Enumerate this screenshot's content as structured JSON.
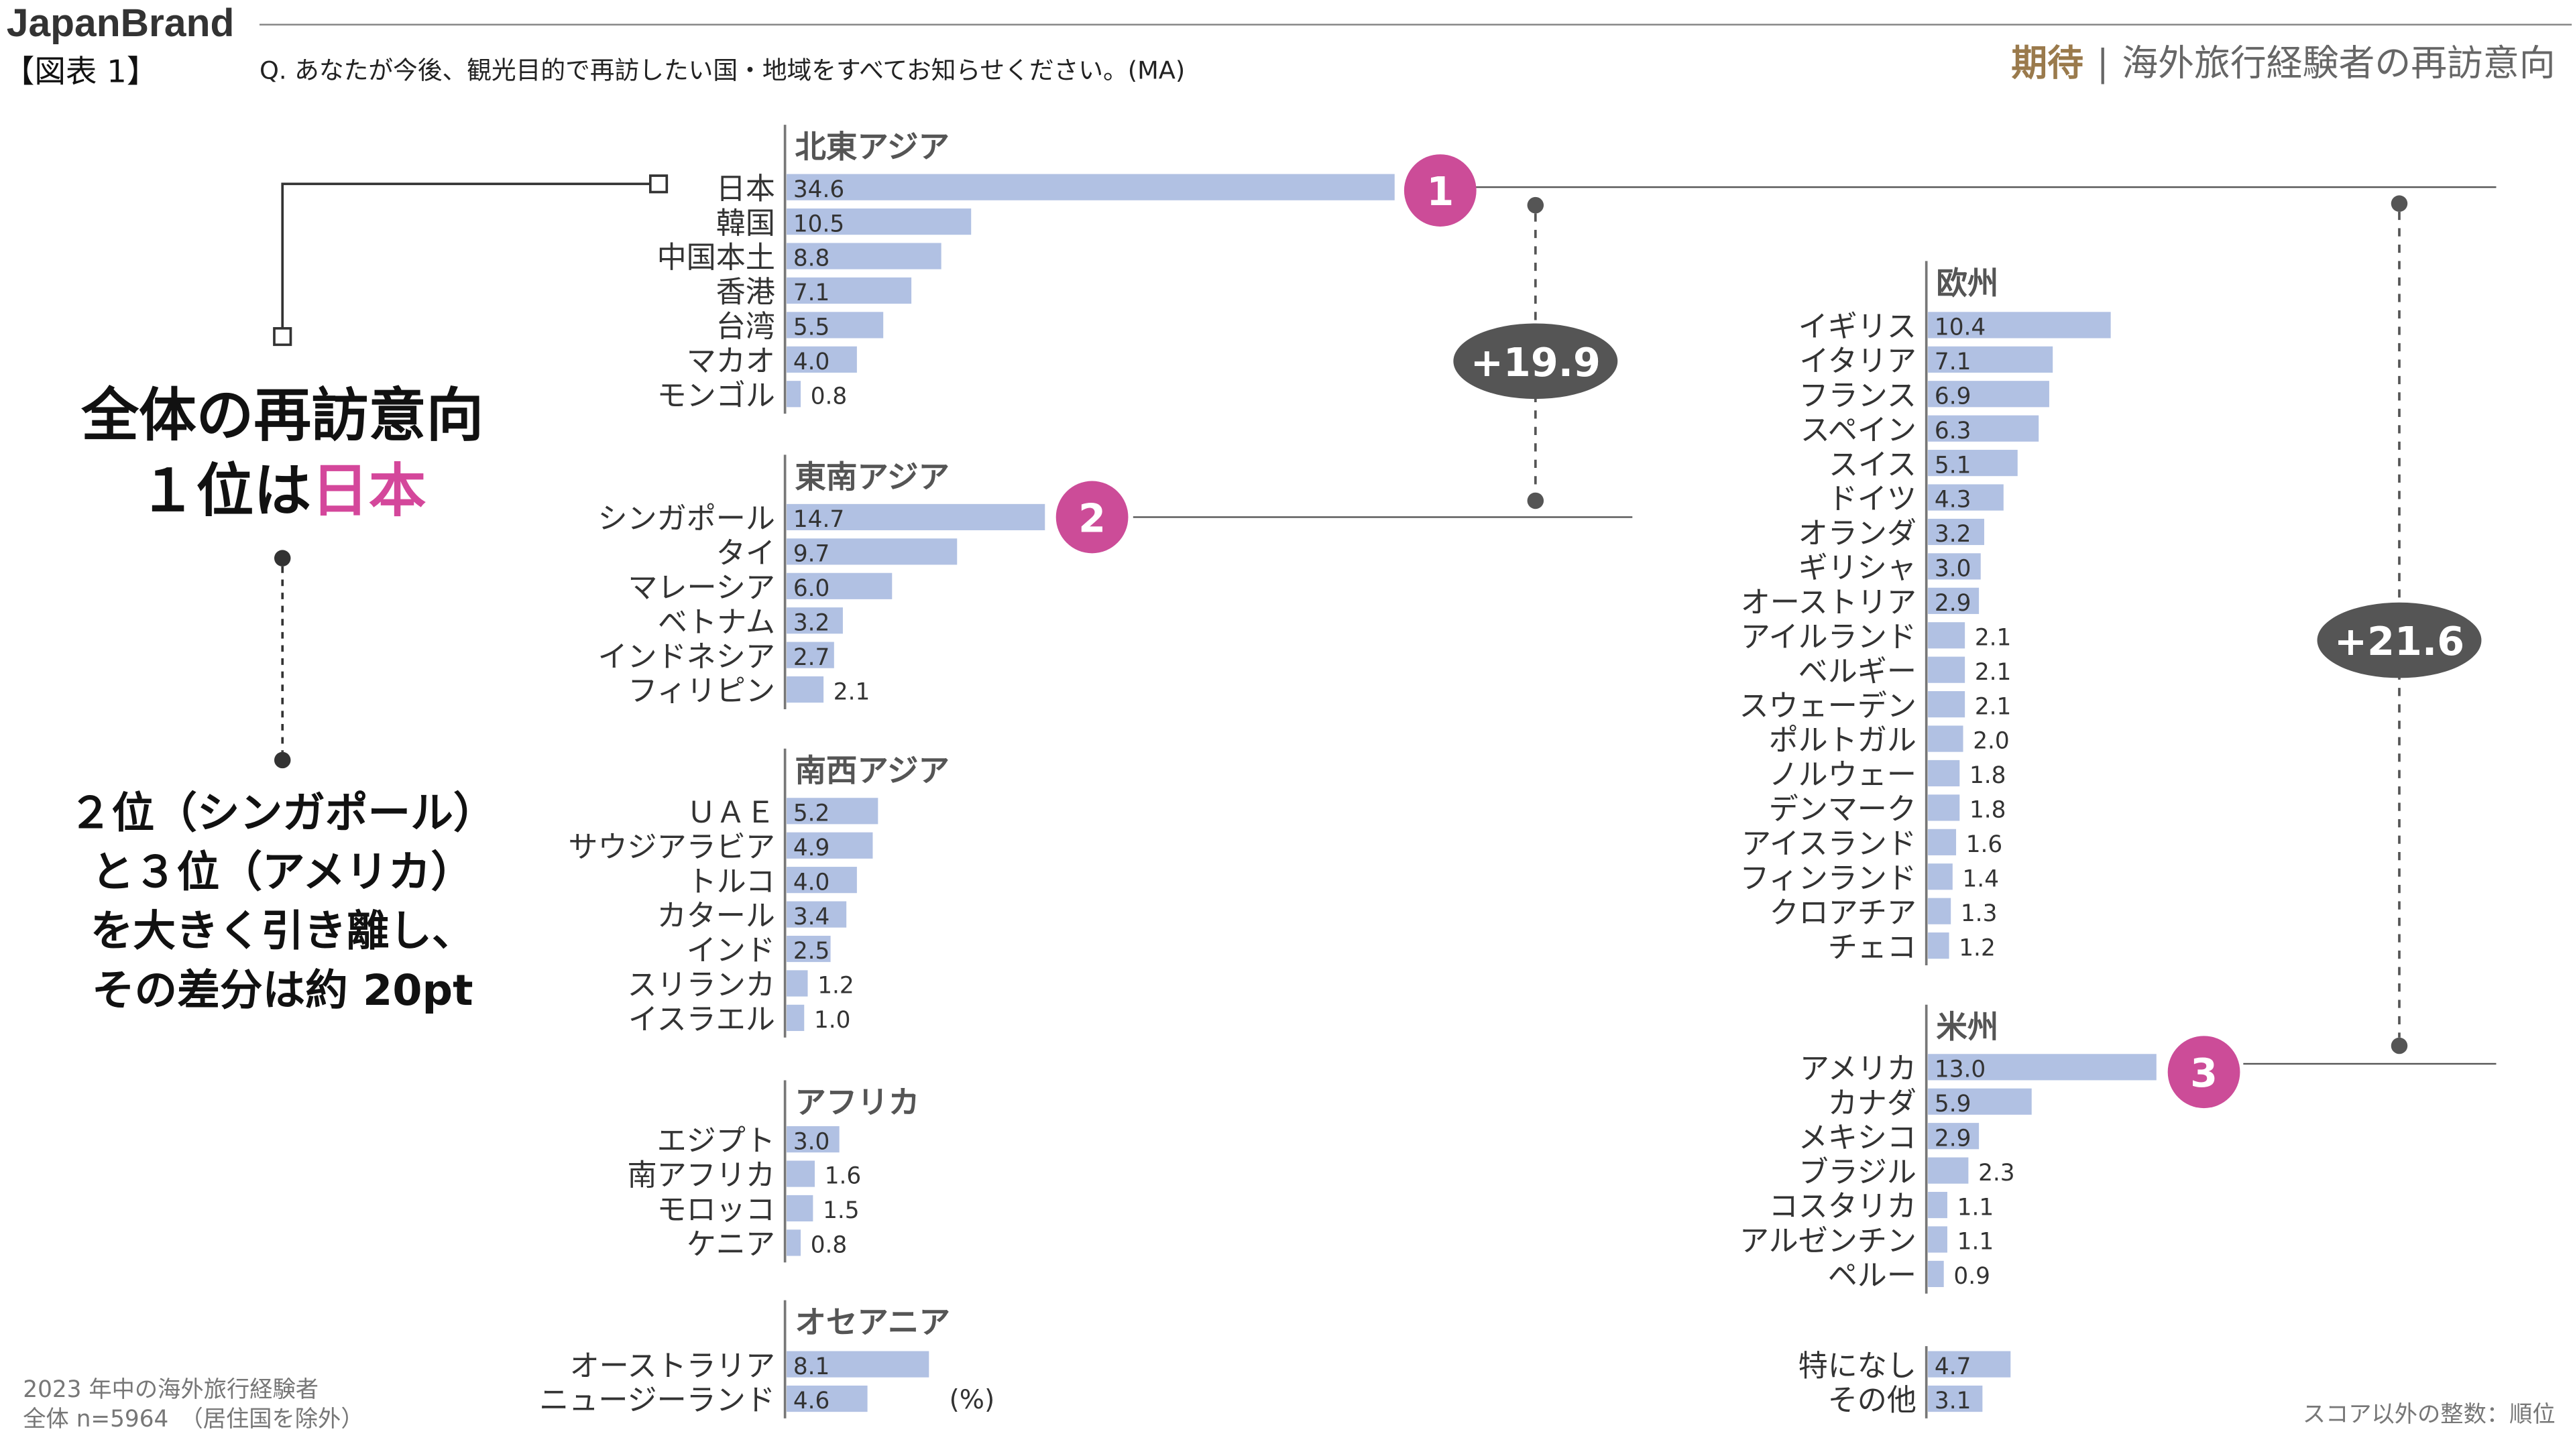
{
  "header": {
    "brand": "JapanBrand",
    "figure_number": "【図表 1】",
    "question": "Q. あなたが今後、観光目的で再訪したい国・地域をすべてお知らせください。(MA)",
    "subtitle_accent": "期待",
    "subtitle_rest": "海外旅行経験者の再訪意向"
  },
  "annotations": {
    "lead_line1": "全体の再訪意向",
    "lead_line2_prefix": "１位は",
    "lead_line2_accent": "日本",
    "caption_lines": [
      "２位（シンガポール）",
      "と３位（アメリカ）",
      "を大きく引き離し、",
      "その差分は約 20pt"
    ],
    "rank_1": "1",
    "rank_2": "2",
    "rank_3": "3",
    "diff_asia": "+19.9",
    "diff_america": "+21.6",
    "unit": "(%)"
  },
  "footer": {
    "sample_line1": "2023 年中の海外旅行経験者",
    "sample_line2": "全体 n=5964　（居住国を除外）",
    "note": "スコア以外の整数：順位"
  },
  "colors": {
    "bar": "#b1c1e3",
    "accent": "#d4479b",
    "rank_badge": "#cc4c98",
    "diff_badge": "#555555",
    "subtitle_accent": "#9a7a4c"
  },
  "chart_data": {
    "type": "bar",
    "orientation": "horizontal",
    "unit": "%",
    "groups": [
      {
        "title": "北東アジア",
        "items": [
          {
            "label": "日本",
            "value": 34.6
          },
          {
            "label": "韓国",
            "value": 10.5
          },
          {
            "label": "中国本土",
            "value": 8.8
          },
          {
            "label": "香港",
            "value": 7.1
          },
          {
            "label": "台湾",
            "value": 5.5
          },
          {
            "label": "マカオ",
            "value": 4.0
          },
          {
            "label": "モンゴル",
            "value": 0.8
          }
        ]
      },
      {
        "title": "東南アジア",
        "items": [
          {
            "label": "シンガポール",
            "value": 14.7
          },
          {
            "label": "タイ",
            "value": 9.7
          },
          {
            "label": "マレーシア",
            "value": 6.0
          },
          {
            "label": "ベトナム",
            "value": 3.2
          },
          {
            "label": "インドネシア",
            "value": 2.7
          },
          {
            "label": "フィリピン",
            "value": 2.1
          }
        ]
      },
      {
        "title": "南西アジア",
        "items": [
          {
            "label": "ＵＡＥ",
            "value": 5.2
          },
          {
            "label": "サウジアラビア",
            "value": 4.9
          },
          {
            "label": "トルコ",
            "value": 4.0
          },
          {
            "label": "カタール",
            "value": 3.4
          },
          {
            "label": "インド",
            "value": 2.5
          },
          {
            "label": "スリランカ",
            "value": 1.2
          },
          {
            "label": "イスラエル",
            "value": 1.0
          }
        ]
      },
      {
        "title": "アフリカ",
        "items": [
          {
            "label": "エジプト",
            "value": 3.0
          },
          {
            "label": "南アフリカ",
            "value": 1.6
          },
          {
            "label": "モロッコ",
            "value": 1.5
          },
          {
            "label": "ケニア",
            "value": 0.8
          }
        ]
      },
      {
        "title": "オセアニア",
        "items": [
          {
            "label": "オーストラリア",
            "value": 8.1
          },
          {
            "label": "ニュージーランド",
            "value": 4.6
          }
        ]
      },
      {
        "title": "欧州",
        "items": [
          {
            "label": "イギリス",
            "value": 10.4
          },
          {
            "label": "イタリア",
            "value": 7.1
          },
          {
            "label": "フランス",
            "value": 6.9
          },
          {
            "label": "スペイン",
            "value": 6.3
          },
          {
            "label": "スイス",
            "value": 5.1
          },
          {
            "label": "ドイツ",
            "value": 4.3
          },
          {
            "label": "オランダ",
            "value": 3.2
          },
          {
            "label": "ギリシャ",
            "value": 3.0
          },
          {
            "label": "オーストリア",
            "value": 2.9
          },
          {
            "label": "アイルランド",
            "value": 2.1
          },
          {
            "label": "ベルギー",
            "value": 2.1
          },
          {
            "label": "スウェーデン",
            "value": 2.1
          },
          {
            "label": "ポルトガル",
            "value": 2.0
          },
          {
            "label": "ノルウェー",
            "value": 1.8
          },
          {
            "label": "デンマーク",
            "value": 1.8
          },
          {
            "label": "アイスランド",
            "value": 1.6
          },
          {
            "label": "フィンランド",
            "value": 1.4
          },
          {
            "label": "クロアチア",
            "value": 1.3
          },
          {
            "label": "チェコ",
            "value": 1.2
          }
        ]
      },
      {
        "title": "米州",
        "items": [
          {
            "label": "アメリカ",
            "value": 13.0
          },
          {
            "label": "カナダ",
            "value": 5.9
          },
          {
            "label": "メキシコ",
            "value": 2.9
          },
          {
            "label": "ブラジル",
            "value": 2.3
          },
          {
            "label": "コスタリカ",
            "value": 1.1
          },
          {
            "label": "アルゼンチン",
            "value": 1.1
          },
          {
            "label": "ペルー",
            "value": 0.9
          }
        ]
      },
      {
        "title": "",
        "items": [
          {
            "label": "特になし",
            "value": 4.7
          },
          {
            "label": "その他",
            "value": 3.1
          }
        ]
      }
    ]
  }
}
